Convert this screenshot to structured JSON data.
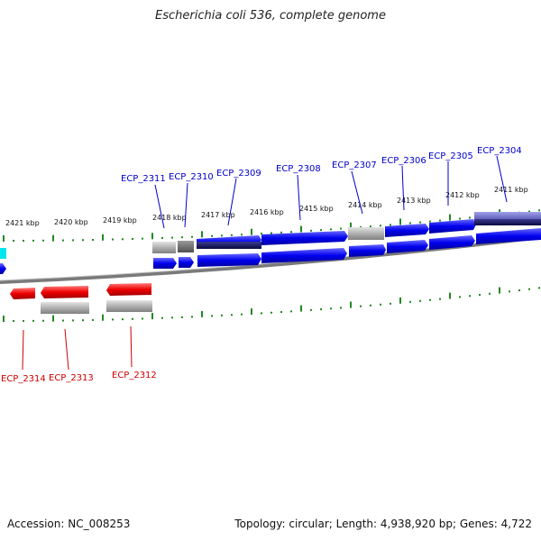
{
  "title": "Escherichia coli 536, complete genome",
  "footer": {
    "accession": "Accession: NC_008253",
    "summary": "Topology: circular; Length: 4,938,920 bp; Genes: 4,722"
  },
  "colors": {
    "forward_gene": "#0000ee",
    "reverse_gene": "#ee0000",
    "misc_feature": "#a0a0a0",
    "tick": "#228822",
    "forward_label": "#0000cc",
    "reverse_label": "#cc0000",
    "backbone": "#808080",
    "accent_cyan": "#00e5ee"
  },
  "kbp_ticks": [
    "2421 kbp",
    "2420 kbp",
    "2419 kbp",
    "2418 kbp",
    "2417 kbp",
    "2416 kbp",
    "2415 kbp",
    "2414 kbp",
    "2413 kbp",
    "2412 kbp",
    "2411 kbp"
  ],
  "forward_labels": [
    "ECP_2311",
    "ECP_2310",
    "ECP_2309",
    "ECP_2308",
    "ECP_2307",
    "ECP_2306",
    "ECP_2305",
    "ECP_2304"
  ],
  "reverse_labels": [
    "ECP_2314",
    "ECP_2313",
    "ECP_2312"
  ]
}
